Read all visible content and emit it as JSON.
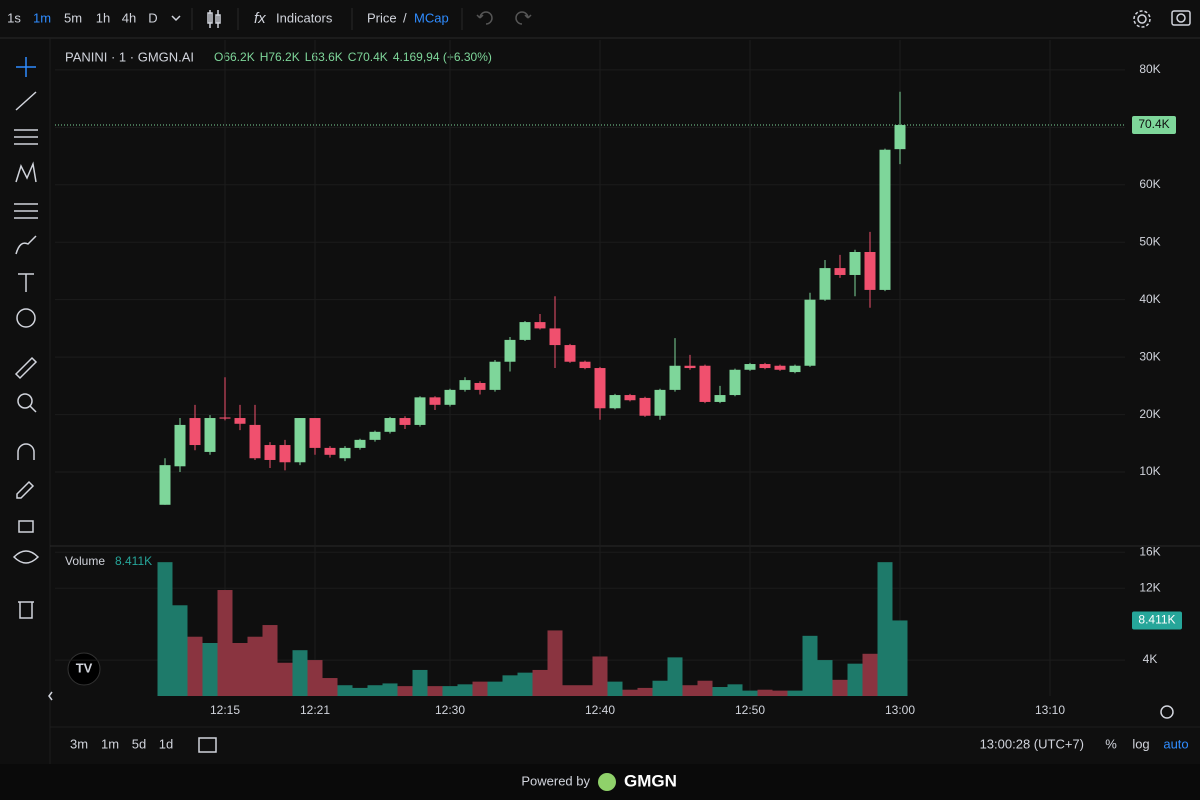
{
  "toolbar": {
    "intervals": [
      "1s",
      "1m",
      "5m",
      "1h",
      "4h",
      "D"
    ],
    "indicators": "Indicators",
    "price": "Price",
    "slash": "/",
    "mcap": "MCap"
  },
  "chart_data": [
    {
      "type": "candlestick",
      "title": "PANINI · 1 · GMGN.AI",
      "ohlc_legend": [
        "O66.2K",
        "H76.2K",
        "L63.6K",
        "C70.4K",
        "4.169,94 (+6.30%)"
      ],
      "x": [
        "12:11",
        "12:12",
        "12:13",
        "12:14",
        "12:15",
        "12:16",
        "12:17",
        "12:18",
        "12:19",
        "12:20",
        "12:21",
        "12:22",
        "12:23",
        "12:24",
        "12:25",
        "12:26",
        "12:27",
        "12:28",
        "12:29",
        "12:30",
        "12:31",
        "12:32",
        "12:33",
        "12:34",
        "12:35",
        "12:36",
        "12:37",
        "12:38",
        "12:39",
        "12:40",
        "12:41",
        "12:42",
        "12:43",
        "12:44",
        "12:45",
        "12:46",
        "12:47",
        "12:48",
        "12:49",
        "12:50",
        "12:51",
        "12:52",
        "12:53",
        "12:54",
        "12:55",
        "12:56",
        "12:57",
        "12:58",
        "12:59",
        "13:00"
      ],
      "open": [
        4300,
        11000,
        19400,
        13500,
        19500,
        19400,
        18200,
        14700,
        14700,
        11700,
        19400,
        14200,
        12400,
        14200,
        15600,
        17000,
        19400,
        18200,
        23000,
        21700,
        24300,
        25500,
        24300,
        29200,
        33000,
        36100,
        35000,
        32100,
        29200,
        28100,
        21100,
        23400,
        22900,
        19800,
        24300,
        28500,
        28500,
        22200,
        23400,
        27800,
        28800,
        28500,
        27400,
        28500,
        40000,
        45500,
        44300,
        48300,
        41700,
        66200
      ],
      "high": [
        12400,
        19400,
        21700,
        19900,
        26500,
        21700,
        21700,
        15200,
        15600,
        19400,
        19400,
        14500,
        14500,
        15800,
        17200,
        19600,
        19700,
        23200,
        23200,
        24500,
        26500,
        25800,
        29500,
        33500,
        36300,
        37500,
        40600,
        32300,
        29400,
        28300,
        23600,
        23600,
        23100,
        24500,
        33300,
        30400,
        28700,
        25000,
        28000,
        29000,
        29000,
        28700,
        28700,
        41200,
        46900,
        47800,
        48700,
        51800,
        66300,
        76200
      ],
      "low": [
        4300,
        10000,
        13800,
        13000,
        19000,
        17300,
        12100,
        10700,
        10300,
        11200,
        13000,
        12500,
        11900,
        13900,
        15300,
        16700,
        17500,
        17900,
        20800,
        21400,
        24000,
        23500,
        24000,
        27500,
        32800,
        34800,
        28100,
        29000,
        27900,
        19100,
        20900,
        22300,
        19600,
        19100,
        24000,
        27800,
        22000,
        22000,
        23200,
        27600,
        27900,
        27600,
        27200,
        28300,
        39800,
        43800,
        40600,
        38600,
        41500,
        63600
      ],
      "close": [
        11200,
        18200,
        14700,
        19400,
        19300,
        18400,
        12400,
        12100,
        11700,
        19400,
        14200,
        13000,
        14200,
        15600,
        17000,
        19400,
        18200,
        23000,
        21700,
        24300,
        26000,
        24300,
        29200,
        33000,
        36100,
        35000,
        32100,
        29200,
        28100,
        21100,
        23400,
        22500,
        19800,
        24300,
        28500,
        28100,
        22200,
        23400,
        27800,
        28800,
        28100,
        27800,
        28500,
        40000,
        45500,
        44300,
        48300,
        41700,
        66100,
        70400
      ],
      "up_color": "#7ed69a",
      "down_color": "#f0506e",
      "last_value_label": "70.4K",
      "xlim": [
        "12:04",
        "13:15"
      ],
      "xticks": [
        "12:15",
        "12:21",
        "12:30",
        "12:40",
        "12:50",
        "13:00",
        "13:10"
      ],
      "ylim": [
        -2700,
        85200
      ],
      "yticks": [
        {
          "value": 10000,
          "label": "10K"
        },
        {
          "value": 20000,
          "label": "20K"
        },
        {
          "value": 30000,
          "label": "30K"
        },
        {
          "value": 40000,
          "label": "40K"
        },
        {
          "value": 50000,
          "label": "50K"
        },
        {
          "value": 60000,
          "label": "60K"
        },
        {
          "value": 70000,
          "label": "70K"
        },
        {
          "value": 80000,
          "label": "80K"
        }
      ],
      "grid": true
    },
    {
      "type": "bar",
      "title": "Volume",
      "last_value_label": "8.411K",
      "values": [
        14900,
        10100,
        6600,
        5900,
        11800,
        5900,
        6600,
        7900,
        3700,
        5100,
        4000,
        2000,
        1200,
        900,
        1200,
        1400,
        1100,
        2900,
        1100,
        1100,
        1300,
        1600,
        1600,
        2300,
        2600,
        2900,
        7300,
        1200,
        1200,
        4400,
        1600,
        700,
        900,
        1700,
        4300,
        1200,
        1700,
        1000,
        1300,
        600,
        700,
        600,
        600,
        6700,
        4000,
        1800,
        3600,
        4700,
        14900,
        8411
      ],
      "up_color": "#1e7a6a",
      "down_color": "#8a3440",
      "ylim": [
        0,
        16700
      ],
      "yticks": [
        {
          "value": 4000,
          "label": "4K"
        },
        {
          "value": 12000,
          "label": "12K"
        },
        {
          "value": 16000,
          "label": "16K"
        }
      ],
      "grid": true
    }
  ],
  "bottom_bar": {
    "ranges": [
      "3m",
      "1m",
      "5d",
      "1d"
    ],
    "clock": "13:00:28 (UTC+7)",
    "percent": "%",
    "log": "log",
    "auto": "auto"
  },
  "footer": {
    "powered": "Powered by",
    "brand": "GMGN"
  }
}
